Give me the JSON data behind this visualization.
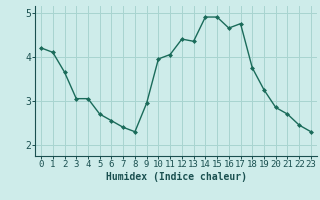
{
  "x": [
    0,
    1,
    2,
    3,
    4,
    5,
    6,
    7,
    8,
    9,
    10,
    11,
    12,
    13,
    14,
    15,
    16,
    17,
    18,
    19,
    20,
    21,
    22,
    23
  ],
  "y": [
    4.2,
    4.1,
    3.65,
    3.05,
    3.05,
    2.7,
    2.55,
    2.4,
    2.3,
    2.95,
    3.95,
    4.05,
    4.4,
    4.35,
    4.9,
    4.9,
    4.65,
    4.75,
    3.75,
    3.25,
    2.85,
    2.7,
    2.45,
    2.3
  ],
  "line_color": "#1a6b5a",
  "marker": "D",
  "marker_size": 2,
  "bg_color": "#ceecea",
  "grid_color": "#a8d4d0",
  "xlabel": "Humidex (Indice chaleur)",
  "xlabel_color": "#1a5050",
  "xlabel_fontsize": 7,
  "tick_color": "#1a5050",
  "tick_fontsize": 6.5,
  "ylim": [
    1.75,
    5.15
  ],
  "yticks": [
    2,
    3,
    4,
    5
  ],
  "xlim": [
    -0.5,
    23.5
  ]
}
